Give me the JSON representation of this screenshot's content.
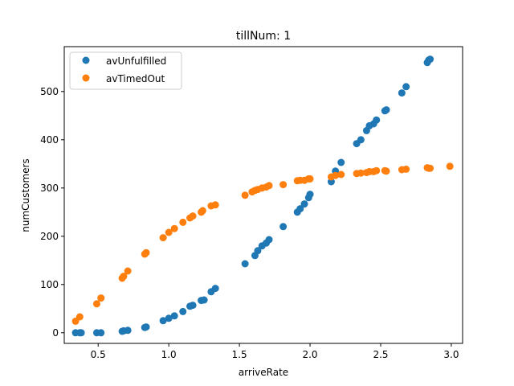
{
  "chart_data": {
    "type": "scatter",
    "title": "tillNum: 1",
    "xlabel": "arriveRate",
    "ylabel": "numCustomers",
    "xlim": [
      0.26,
      3.08
    ],
    "ylim": [
      -22,
      593
    ],
    "xticks": [
      0.5,
      1.0,
      1.5,
      2.0,
      2.5,
      3.0
    ],
    "xtick_labels": [
      "0.5",
      "1.0",
      "1.5",
      "2.0",
      "2.5",
      "3.0"
    ],
    "yticks": [
      0,
      100,
      200,
      300,
      400,
      500
    ],
    "ytick_labels": [
      "0",
      "100",
      "200",
      "300",
      "400",
      "500"
    ],
    "grid": false,
    "legend_position": "top-left",
    "series": [
      {
        "name": "avUnfulfilled",
        "color": "#1f77b4",
        "points": [
          [
            0.34,
            0
          ],
          [
            0.37,
            0
          ],
          [
            0.38,
            0
          ],
          [
            0.49,
            0
          ],
          [
            0.52,
            0
          ],
          [
            0.67,
            3
          ],
          [
            0.68,
            4
          ],
          [
            0.71,
            5
          ],
          [
            0.83,
            11
          ],
          [
            0.84,
            12
          ],
          [
            0.96,
            25
          ],
          [
            1.0,
            30
          ],
          [
            1.04,
            35
          ],
          [
            1.1,
            44
          ],
          [
            1.15,
            55
          ],
          [
            1.17,
            57
          ],
          [
            1.23,
            67
          ],
          [
            1.25,
            68
          ],
          [
            1.3,
            85
          ],
          [
            1.33,
            92
          ],
          [
            1.54,
            143
          ],
          [
            1.61,
            160
          ],
          [
            1.63,
            170
          ],
          [
            1.66,
            180
          ],
          [
            1.69,
            186
          ],
          [
            1.71,
            193
          ],
          [
            1.81,
            220
          ],
          [
            1.91,
            250
          ],
          [
            1.93,
            257
          ],
          [
            1.96,
            267
          ],
          [
            1.99,
            280
          ],
          [
            2.0,
            287
          ],
          [
            2.15,
            313
          ],
          [
            2.18,
            335
          ],
          [
            2.22,
            353
          ],
          [
            2.33,
            392
          ],
          [
            2.36,
            400
          ],
          [
            2.4,
            419
          ],
          [
            2.42,
            429
          ],
          [
            2.45,
            433
          ],
          [
            2.47,
            441
          ],
          [
            2.53,
            460
          ],
          [
            2.54,
            462
          ],
          [
            2.65,
            497
          ],
          [
            2.68,
            510
          ],
          [
            2.83,
            560
          ],
          [
            2.84,
            565
          ],
          [
            2.85,
            567
          ]
        ]
      },
      {
        "name": "avTimedOut",
        "color": "#ff7f0e",
        "points": [
          [
            0.34,
            24
          ],
          [
            0.37,
            33
          ],
          [
            0.49,
            60
          ],
          [
            0.52,
            72
          ],
          [
            0.67,
            113
          ],
          [
            0.68,
            117
          ],
          [
            0.71,
            128
          ],
          [
            0.83,
            163
          ],
          [
            0.84,
            166
          ],
          [
            0.96,
            197
          ],
          [
            1.0,
            208
          ],
          [
            1.04,
            216
          ],
          [
            1.1,
            229
          ],
          [
            1.15,
            238
          ],
          [
            1.17,
            242
          ],
          [
            1.23,
            250
          ],
          [
            1.24,
            253
          ],
          [
            1.3,
            263
          ],
          [
            1.33,
            265
          ],
          [
            1.54,
            285
          ],
          [
            1.59,
            292
          ],
          [
            1.61,
            295
          ],
          [
            1.63,
            297
          ],
          [
            1.66,
            300
          ],
          [
            1.69,
            302
          ],
          [
            1.71,
            305
          ],
          [
            1.81,
            307
          ],
          [
            1.91,
            315
          ],
          [
            1.93,
            316
          ],
          [
            1.96,
            316
          ],
          [
            1.99,
            319
          ],
          [
            2.0,
            319
          ],
          [
            2.15,
            323
          ],
          [
            2.18,
            326
          ],
          [
            2.22,
            328
          ],
          [
            2.33,
            330
          ],
          [
            2.36,
            331
          ],
          [
            2.4,
            332
          ],
          [
            2.42,
            334
          ],
          [
            2.45,
            334
          ],
          [
            2.47,
            336
          ],
          [
            2.53,
            336
          ],
          [
            2.54,
            335
          ],
          [
            2.65,
            338
          ],
          [
            2.68,
            339
          ],
          [
            2.83,
            342
          ],
          [
            2.84,
            341
          ],
          [
            2.85,
            341
          ],
          [
            2.99,
            345
          ]
        ]
      }
    ]
  }
}
